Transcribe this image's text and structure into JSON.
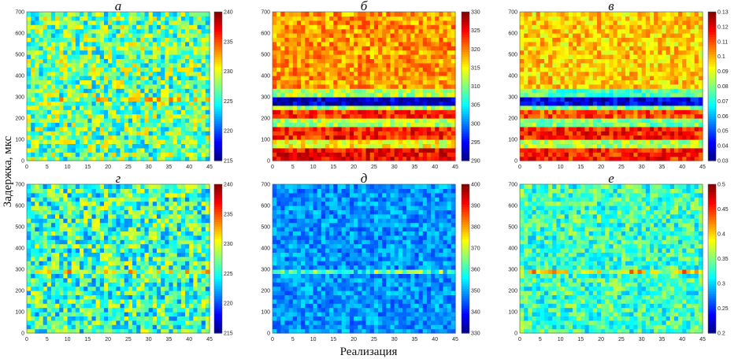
{
  "figure": {
    "ylabel": "Задержка, мкс",
    "xlabel": "Реализация"
  },
  "chart_data": [
    {
      "type": "heatmap",
      "panel": "а",
      "title": "а",
      "xlim": [
        0,
        45
      ],
      "ylim": [
        0,
        700
      ],
      "xticks": [
        "0",
        "5",
        "10",
        "15",
        "20",
        "25",
        "30",
        "35",
        "40",
        "45"
      ],
      "yticks": [
        "0",
        "100",
        "200",
        "300",
        "400",
        "500",
        "600",
        "700"
      ],
      "colorbar": {
        "min": 215,
        "max": 240,
        "ticks": [
          "215",
          "220",
          "225",
          "230",
          "235",
          "240"
        ]
      },
      "pattern": "noise",
      "base": 227,
      "noise": 5,
      "hot_line": 2.5
    },
    {
      "type": "heatmap",
      "panel": "б",
      "title": "б",
      "xlim": [
        0,
        45
      ],
      "ylim": [
        0,
        700
      ],
      "xticks": [
        "0",
        "5",
        "10",
        "15",
        "20",
        "25",
        "30",
        "35",
        "40",
        "45"
      ],
      "yticks": [
        "0",
        "100",
        "200",
        "300",
        "400",
        "500",
        "600",
        "700"
      ],
      "colorbar": {
        "min": 290,
        "max": 330,
        "ticks": [
          "290",
          "295",
          "300",
          "305",
          "310",
          "315",
          "320",
          "325",
          "330"
        ]
      },
      "pattern": "bands",
      "bands": [
        [
          0,
          60,
          325
        ],
        [
          60,
          100,
          315
        ],
        [
          100,
          160,
          324
        ],
        [
          160,
          200,
          312
        ],
        [
          200,
          240,
          323
        ],
        [
          240,
          270,
          311
        ],
        [
          270,
          310,
          293
        ],
        [
          310,
          340,
          312
        ],
        [
          340,
          700,
          319
        ]
      ],
      "noise": 4
    },
    {
      "type": "heatmap",
      "panel": "в",
      "title": "в",
      "xlim": [
        0,
        45
      ],
      "ylim": [
        0,
        700
      ],
      "xticks": [
        "0",
        "5",
        "10",
        "15",
        "20",
        "25",
        "30",
        "35",
        "40",
        "45"
      ],
      "yticks": [
        "0",
        "100",
        "200",
        "300",
        "400",
        "500",
        "600",
        "700"
      ],
      "colorbar": {
        "min": 0.03,
        "max": 0.13,
        "ticks": [
          "0.03",
          "0.04",
          "0.05",
          "0.06",
          "0.07",
          "0.08",
          "0.09",
          "0.1",
          "0.11",
          "0.12",
          "0.13"
        ]
      },
      "pattern": "bands",
      "bands": [
        [
          0,
          60,
          0.115
        ],
        [
          60,
          100,
          0.085
        ],
        [
          100,
          160,
          0.115
        ],
        [
          160,
          200,
          0.08
        ],
        [
          200,
          240,
          0.11
        ],
        [
          240,
          270,
          0.08
        ],
        [
          270,
          310,
          0.04
        ],
        [
          310,
          340,
          0.075
        ],
        [
          340,
          700,
          0.097
        ]
      ],
      "noise": 0.01
    },
    {
      "type": "heatmap",
      "panel": "г",
      "title": "г",
      "xlim": [
        0,
        45
      ],
      "ylim": [
        0,
        700
      ],
      "xticks": [
        "0",
        "5",
        "10",
        "15",
        "20",
        "25",
        "30",
        "35",
        "40",
        "45"
      ],
      "yticks": [
        "0",
        "100",
        "200",
        "300",
        "400",
        "500",
        "600",
        "700"
      ],
      "colorbar": {
        "min": 215,
        "max": 240,
        "ticks": [
          "215",
          "220",
          "225",
          "230",
          "235",
          "240"
        ]
      },
      "pattern": "noise",
      "base": 226,
      "noise": 5,
      "hot_line": 3
    },
    {
      "type": "heatmap",
      "panel": "д",
      "title": "д",
      "xlim": [
        0,
        45
      ],
      "ylim": [
        0,
        700
      ],
      "xticks": [
        "0",
        "5",
        "10",
        "15",
        "20",
        "25",
        "30",
        "35",
        "40",
        "45"
      ],
      "yticks": [
        "0",
        "100",
        "200",
        "300",
        "400",
        "500",
        "600",
        "700"
      ],
      "colorbar": {
        "min": 330,
        "max": 400,
        "ticks": [
          "330",
          "340",
          "350",
          "360",
          "370",
          "380",
          "390",
          "400"
        ]
      },
      "pattern": "noise",
      "base": 349,
      "noise": 6,
      "hot_line": 14
    },
    {
      "type": "heatmap",
      "panel": "е",
      "title": "е",
      "xlim": [
        0,
        45
      ],
      "ylim": [
        0,
        700
      ],
      "xticks": [
        "0",
        "5",
        "10",
        "15",
        "20",
        "25",
        "30",
        "35",
        "40",
        "45"
      ],
      "yticks": [
        "0",
        "100",
        "200",
        "300",
        "400",
        "500",
        "600",
        "700"
      ],
      "colorbar": {
        "min": 0.2,
        "max": 0.5,
        "ticks": [
          "0.2",
          "0.25",
          "0.3",
          "0.35",
          "0.4",
          "0.45",
          "0.5"
        ]
      },
      "pattern": "noise",
      "base": 0.33,
      "noise": 0.04,
      "hot_line": 0.06
    }
  ]
}
